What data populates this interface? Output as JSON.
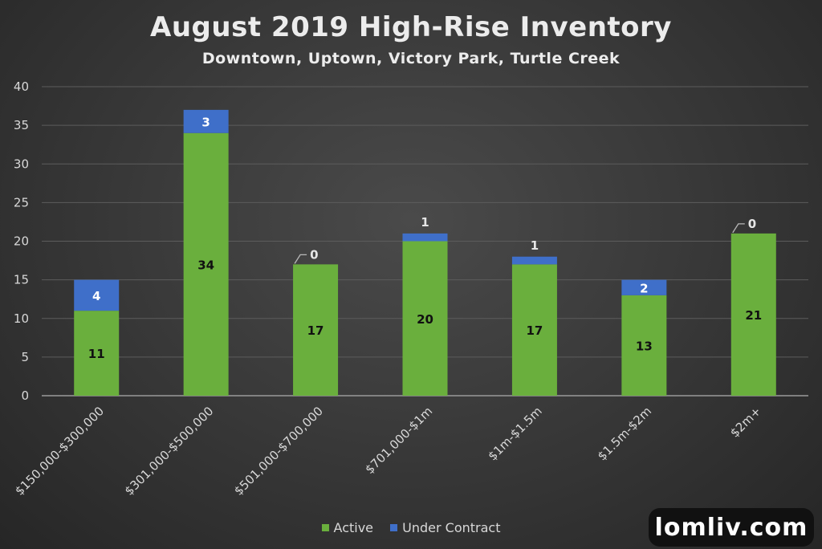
{
  "chart_data": {
    "type": "bar",
    "stacked": true,
    "title": "August 2019 High-Rise Inventory",
    "subtitle": "Downtown, Uptown, Victory Park, Turtle Creek",
    "xlabel": "",
    "ylabel": "",
    "ylim": [
      0,
      40
    ],
    "yticks": [
      0,
      5,
      10,
      15,
      20,
      25,
      30,
      35,
      40
    ],
    "grid": true,
    "legend_position": "bottom",
    "categories": [
      "$150,000-$300,000",
      "$301,000-$500,000",
      "$501,000-$700,000",
      "$701,000-$1m",
      "$1m-$1.5m",
      "$1.5m-$2m",
      "$2m+"
    ],
    "series": [
      {
        "name": "Active",
        "color": "#6aaf3d",
        "values": [
          11,
          34,
          17,
          20,
          17,
          13,
          21
        ]
      },
      {
        "name": "Under Contract",
        "color": "#3f6fc9",
        "values": [
          4,
          3,
          0,
          1,
          1,
          2,
          0
        ]
      }
    ]
  },
  "legend": {
    "items": [
      {
        "label": "Active",
        "color": "#6aaf3d"
      },
      {
        "label": "Under Contract",
        "color": "#3f6fc9"
      }
    ]
  },
  "watermark": {
    "text": "lomliv.com"
  }
}
